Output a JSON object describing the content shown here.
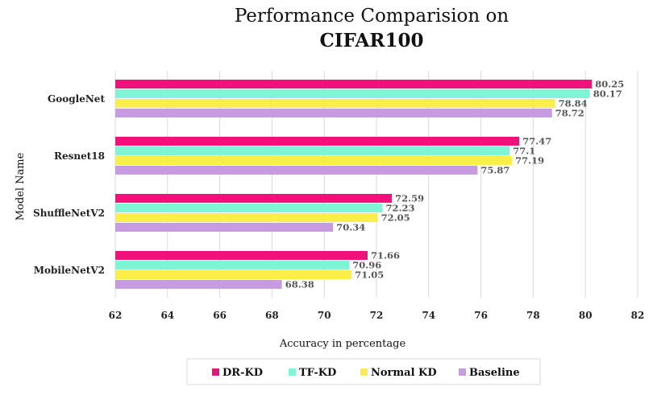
{
  "chart_data": {
    "type": "bar",
    "orientation": "horizontal",
    "title_line1": "Performance Comparision on",
    "title_line2": "CIFAR100",
    "xlabel": "Accuracy in percentage",
    "ylabel": "Model Name",
    "xlim": [
      62,
      82
    ],
    "xticks": [
      "62",
      "64",
      "66",
      "68",
      "70",
      "72",
      "74",
      "76",
      "78",
      "80",
      "82"
    ],
    "grid": true,
    "legend_position": "bottom",
    "categories": [
      "GoogleNet",
      "Resnet18",
      "ShuffleNetV2",
      "MobileNetV2"
    ],
    "series": [
      {
        "name": "DR-KD",
        "color": "#f0127a",
        "values": [
          80.25,
          77.47,
          72.59,
          71.66
        ]
      },
      {
        "name": "TF-KD",
        "color": "#7ff5d6",
        "values": [
          80.17,
          77.1,
          72.23,
          70.96
        ]
      },
      {
        "name": "Normal KD",
        "color": "#fbee4a",
        "values": [
          78.84,
          77.19,
          72.05,
          71.05
        ]
      },
      {
        "name": "Baseline",
        "color": "#c79be0",
        "values": [
          78.72,
          75.87,
          70.34,
          68.38
        ]
      }
    ],
    "value_labels": [
      [
        "80.25",
        "77.47",
        "72.59",
        "71.66"
      ],
      [
        "80.17",
        "77.1",
        "72.23",
        "70.96"
      ],
      [
        "78.84",
        "77.19",
        "72.05",
        "71.05"
      ],
      [
        "78.72",
        "75.87",
        "70.34",
        "68.38"
      ]
    ]
  }
}
